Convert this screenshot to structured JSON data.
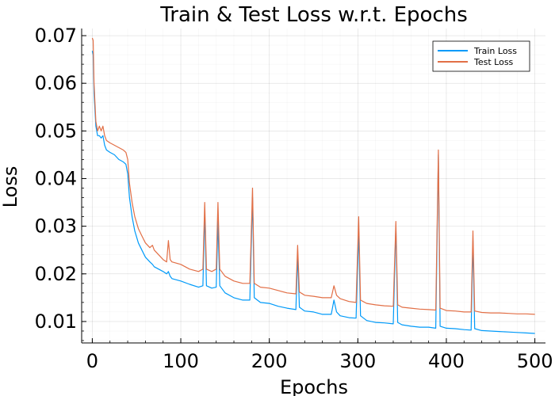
{
  "chart_data": {
    "type": "line",
    "title": "Train & Test Loss w.r.t. Epochs",
    "xlabel": "Epochs",
    "ylabel": "Loss",
    "xlim": [
      -12,
      512
    ],
    "ylim": [
      0.0055,
      0.0715
    ],
    "xticks": [
      0,
      100,
      200,
      300,
      400,
      500
    ],
    "yticks": [
      0.01,
      0.02,
      0.03,
      0.04,
      0.05,
      0.06,
      0.07
    ],
    "xtick_labels": [
      "0",
      "100",
      "200",
      "300",
      "400",
      "500"
    ],
    "ytick_labels": [
      "0.01",
      "0.02",
      "0.03",
      "0.04",
      "0.05",
      "0.06",
      "0.07"
    ],
    "grid": true,
    "legend_position": "top-right",
    "series": [
      {
        "name": "Train Loss",
        "color": "#009af9",
        "x": [
          0,
          1,
          2,
          4,
          6,
          8,
          10,
          12,
          14,
          16,
          20,
          25,
          30,
          35,
          38,
          40,
          42,
          45,
          48,
          52,
          56,
          60,
          65,
          68,
          70,
          75,
          80,
          84,
          86,
          88,
          90,
          100,
          110,
          120,
          125,
          127,
          129,
          135,
          140,
          142,
          144,
          150,
          160,
          170,
          178,
          181,
          183,
          190,
          200,
          210,
          220,
          230,
          232,
          234,
          240,
          250,
          260,
          270,
          273,
          276,
          280,
          290,
          298,
          301,
          303,
          310,
          320,
          330,
          340,
          343,
          345,
          350,
          360,
          370,
          380,
          388,
          391,
          393,
          400,
          410,
          420,
          428,
          430,
          432,
          440,
          450,
          460,
          470,
          480,
          490,
          500
        ],
        "y": [
          0.0668,
          0.066,
          0.058,
          0.051,
          0.049,
          0.049,
          0.0485,
          0.049,
          0.047,
          0.046,
          0.0455,
          0.045,
          0.044,
          0.0435,
          0.043,
          0.041,
          0.036,
          0.032,
          0.029,
          0.0265,
          0.025,
          0.0235,
          0.0225,
          0.022,
          0.0215,
          0.021,
          0.0205,
          0.02,
          0.0205,
          0.0195,
          0.019,
          0.0185,
          0.0178,
          0.0172,
          0.0175,
          0.033,
          0.0175,
          0.017,
          0.0172,
          0.031,
          0.0175,
          0.016,
          0.015,
          0.0145,
          0.0145,
          0.036,
          0.015,
          0.014,
          0.0138,
          0.0132,
          0.0128,
          0.0125,
          0.024,
          0.013,
          0.0122,
          0.012,
          0.0115,
          0.0115,
          0.0145,
          0.012,
          0.0112,
          0.0108,
          0.0107,
          0.029,
          0.0112,
          0.0102,
          0.0098,
          0.0097,
          0.0095,
          0.03,
          0.0098,
          0.0093,
          0.009,
          0.0088,
          0.0088,
          0.0086,
          0.045,
          0.009,
          0.0086,
          0.0085,
          0.0083,
          0.0082,
          0.027,
          0.0085,
          0.0081,
          0.008,
          0.0079,
          0.0078,
          0.0077,
          0.0076,
          0.0075
        ]
      },
      {
        "name": "Test Loss",
        "color": "#e26f46",
        "x": [
          0,
          1,
          2,
          4,
          6,
          8,
          10,
          12,
          14,
          16,
          20,
          25,
          30,
          35,
          38,
          40,
          42,
          45,
          48,
          52,
          56,
          60,
          65,
          68,
          70,
          75,
          80,
          84,
          86,
          88,
          90,
          100,
          110,
          120,
          125,
          127,
          129,
          135,
          140,
          142,
          144,
          150,
          160,
          170,
          178,
          181,
          183,
          190,
          200,
          210,
          220,
          230,
          232,
          234,
          240,
          250,
          260,
          270,
          273,
          276,
          280,
          290,
          298,
          301,
          303,
          310,
          320,
          330,
          340,
          343,
          345,
          350,
          360,
          370,
          380,
          388,
          391,
          393,
          400,
          410,
          420,
          428,
          430,
          432,
          440,
          450,
          460,
          470,
          480,
          490,
          500
        ],
        "y": [
          0.0695,
          0.069,
          0.06,
          0.052,
          0.05,
          0.051,
          0.05,
          0.051,
          0.049,
          0.048,
          0.0475,
          0.047,
          0.0465,
          0.046,
          0.0455,
          0.044,
          0.039,
          0.035,
          0.032,
          0.0295,
          0.028,
          0.0265,
          0.0255,
          0.026,
          0.025,
          0.024,
          0.023,
          0.0225,
          0.027,
          0.023,
          0.0225,
          0.022,
          0.021,
          0.0205,
          0.021,
          0.035,
          0.021,
          0.0205,
          0.021,
          0.035,
          0.021,
          0.0195,
          0.0185,
          0.018,
          0.018,
          0.038,
          0.018,
          0.0172,
          0.017,
          0.0165,
          0.016,
          0.0158,
          0.026,
          0.0162,
          0.0155,
          0.0153,
          0.015,
          0.015,
          0.0175,
          0.0155,
          0.0148,
          0.0142,
          0.014,
          0.032,
          0.0145,
          0.0138,
          0.0135,
          0.0133,
          0.0132,
          0.031,
          0.0135,
          0.013,
          0.0128,
          0.0126,
          0.0125,
          0.0124,
          0.046,
          0.0128,
          0.0123,
          0.0122,
          0.012,
          0.012,
          0.029,
          0.0122,
          0.0119,
          0.0118,
          0.0118,
          0.0117,
          0.0116,
          0.0116,
          0.0115
        ]
      }
    ]
  }
}
